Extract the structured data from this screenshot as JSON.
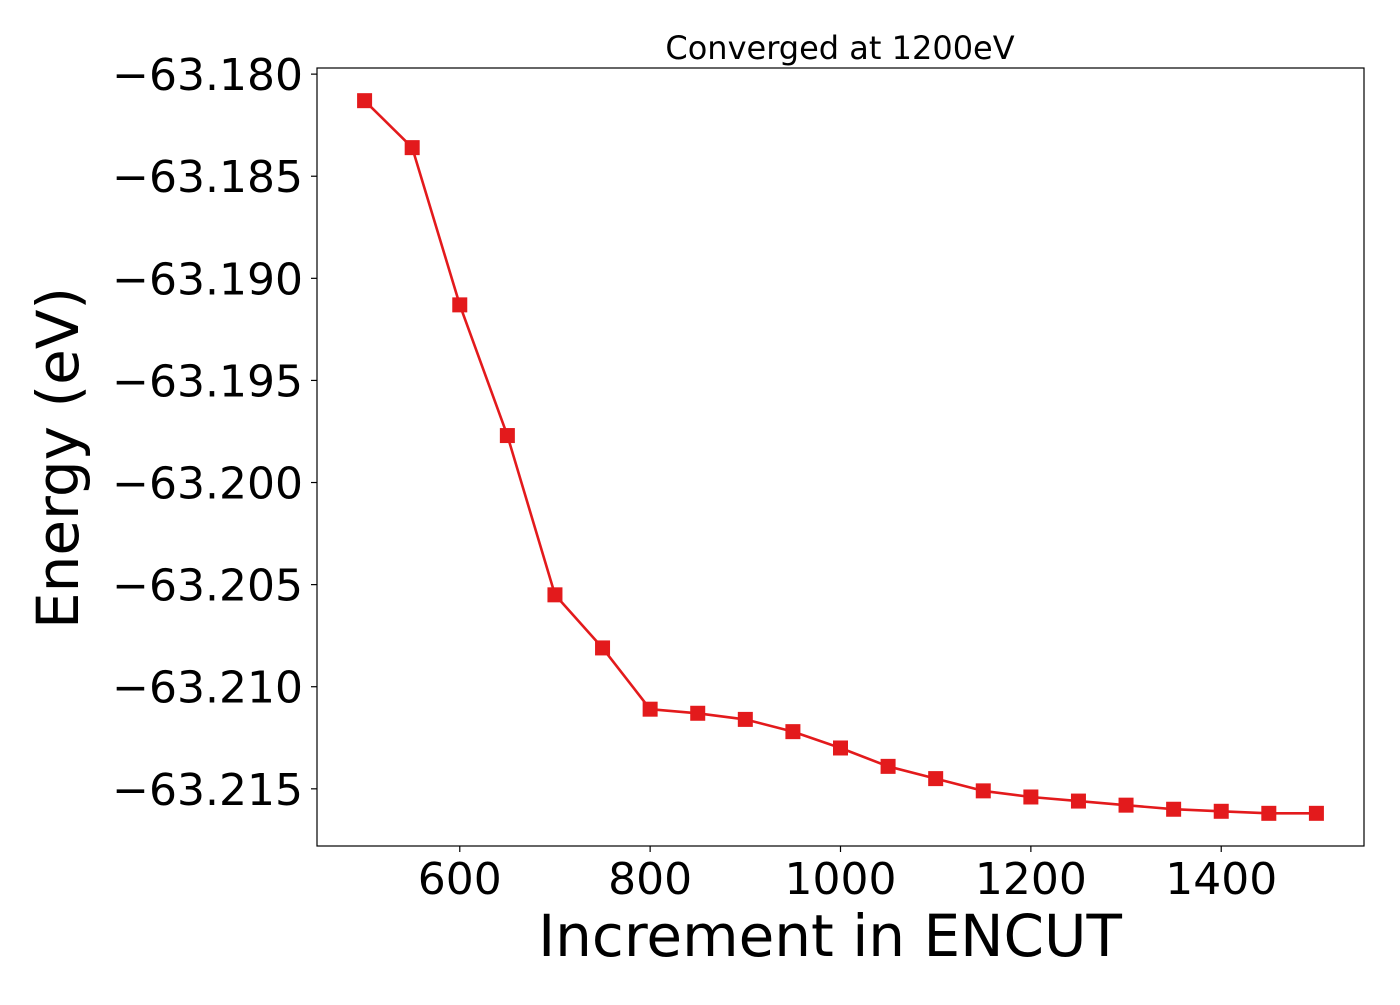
{
  "chart_data": {
    "type": "line",
    "title": "Converged at 1200eV",
    "xlabel": "Increment in ENCUT",
    "ylabel": "Energy (eV)",
    "xlim": [
      450,
      1550
    ],
    "ylim": [
      -63.2178,
      -63.1797
    ],
    "xticks": [
      600,
      800,
      1000,
      1200,
      1400
    ],
    "yticks": [
      -63.18,
      -63.185,
      -63.19,
      -63.195,
      -63.2,
      -63.205,
      -63.21,
      -63.215
    ],
    "yticks_labels": [
      "−63.180",
      "−63.185",
      "−63.190",
      "−63.195",
      "−63.200",
      "−63.205",
      "−63.210",
      "−63.215"
    ],
    "grid": false,
    "legend": "none",
    "series": [
      {
        "color": "#e31a1c",
        "marker": "square",
        "x": [
          500,
          550,
          600,
          650,
          700,
          750,
          800,
          850,
          900,
          950,
          1000,
          1050,
          1100,
          1150,
          1200,
          1250,
          1300,
          1350,
          1400,
          1450,
          1500
        ],
        "y": [
          -63.1813,
          -63.1836,
          -63.1913,
          -63.1977,
          -63.2055,
          -63.2081,
          -63.2111,
          -63.2113,
          -63.2116,
          -63.2122,
          -63.213,
          -63.2139,
          -63.2145,
          -63.2151,
          -63.2154,
          -63.2156,
          -63.2158,
          -63.216,
          -63.2161,
          -63.2162,
          -63.2162
        ]
      }
    ]
  }
}
